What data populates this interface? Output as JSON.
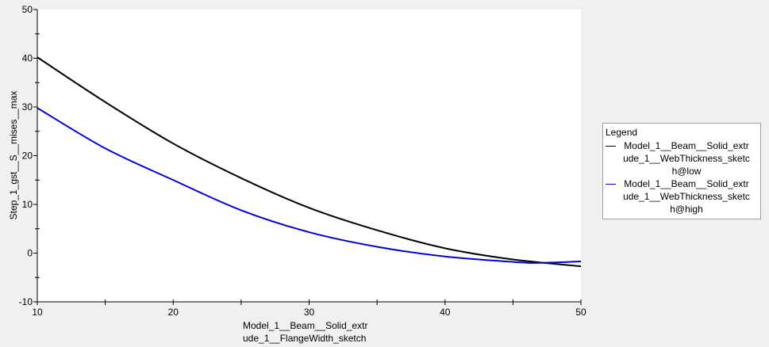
{
  "chart_data": {
    "type": "line",
    "xlabel": "Model_1__Beam__Solid_extrude_1__FlangeWidth_sketch",
    "xlabel_lines": [
      "Model_1__Beam__Solid_extr",
      "ude_1__FlangeWidth_sketch"
    ],
    "ylabel": "Step_1_gst__S__mises__max",
    "xlim": [
      10,
      50
    ],
    "ylim": [
      -10,
      50
    ],
    "xticks": [
      10,
      20,
      30,
      40,
      50
    ],
    "yticks": [
      -10,
      0,
      10,
      20,
      30,
      40,
      50
    ],
    "grid": false,
    "legend_placement": "right",
    "legend_title": "Legend",
    "series": [
      {
        "name": "Model_1__Beam__Solid_extrude_1__WebThickness_sketch@low",
        "legend_lines": [
          "Model_1__Beam__Solid_extr",
          "ude_1__WebThickness_sketc",
          "h@low"
        ],
        "color": "#000000",
        "x": [
          10,
          15,
          20,
          25,
          30,
          35,
          40,
          45,
          50
        ],
        "y": [
          40.2,
          31.0,
          22.5,
          15.4,
          9.3,
          4.7,
          1.0,
          -1.3,
          -2.7
        ]
      },
      {
        "name": "Model_1__Beam__Solid_extrude_1__WebThickness_sketch@high",
        "legend_lines": [
          "Model_1__Beam__Solid_extr",
          "ude_1__WebThickness_sketc",
          "h@high"
        ],
        "color": "#0000e0",
        "x": [
          10,
          15,
          20,
          25,
          30,
          35,
          40,
          45,
          47,
          50
        ],
        "y": [
          29.8,
          21.5,
          15.0,
          8.8,
          4.3,
          1.3,
          -0.7,
          -1.8,
          -2.0,
          -1.7
        ]
      }
    ]
  }
}
